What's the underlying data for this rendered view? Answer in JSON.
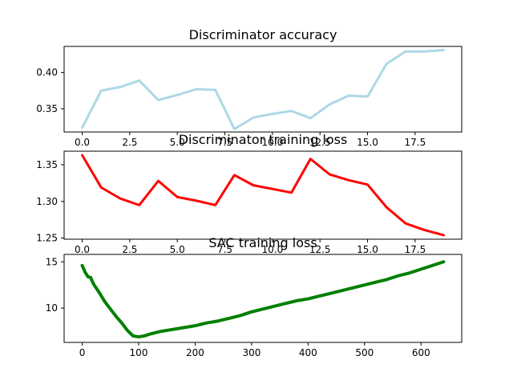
{
  "chart_data": [
    {
      "type": "line",
      "title": "Discriminator accuracy",
      "xlabel": "",
      "ylabel": "",
      "xlim": [
        -0.95,
        19.95
      ],
      "ylim": [
        0.318,
        0.436
      ],
      "x_ticks": [
        0.0,
        2.5,
        5.0,
        7.5,
        10.0,
        12.5,
        15.0,
        17.5
      ],
      "x_tick_labels": [
        "0.0",
        "2.5",
        "5.0",
        "7.5",
        "10.0",
        "12.5",
        "15.0",
        "17.5"
      ],
      "y_ticks": [
        0.35,
        0.4
      ],
      "y_tick_labels": [
        "0.35",
        "0.40"
      ],
      "grid": false,
      "color": "#add8e6",
      "series": [
        {
          "x": [
            0,
            1,
            2,
            3,
            4,
            5,
            6,
            7,
            8,
            9,
            10,
            11,
            12,
            13,
            14,
            15,
            16,
            17,
            18,
            19
          ],
          "values": [
            0.324,
            0.375,
            0.38,
            0.389,
            0.362,
            0.369,
            0.377,
            0.376,
            0.322,
            0.338,
            0.343,
            0.347,
            0.337,
            0.356,
            0.368,
            0.367,
            0.412,
            0.429,
            0.429,
            0.431
          ]
        }
      ]
    },
    {
      "type": "line",
      "title": "Discriminator training loss",
      "xlabel": "",
      "ylabel": "",
      "xlim": [
        -0.95,
        19.95
      ],
      "ylim": [
        1.2485,
        1.3685
      ],
      "x_ticks": [
        0.0,
        2.5,
        5.0,
        7.5,
        10.0,
        12.5,
        15.0,
        17.5
      ],
      "x_tick_labels": [
        "0.0",
        "2.5",
        "5.0",
        "7.5",
        "10.0",
        "12.5",
        "15.0",
        "17.5"
      ],
      "y_ticks": [
        1.25,
        1.3,
        1.35
      ],
      "y_tick_labels": [
        "1.25",
        "1.30",
        "1.35"
      ],
      "grid": false,
      "color": "#ff0000",
      "series": [
        {
          "x": [
            0,
            1,
            2,
            3,
            4,
            5,
            6,
            7,
            8,
            9,
            10,
            11,
            12,
            13,
            14,
            15,
            16,
            17,
            18,
            19
          ],
          "values": [
            1.363,
            1.319,
            1.304,
            1.295,
            1.328,
            1.306,
            1.301,
            1.295,
            1.336,
            1.322,
            1.317,
            1.312,
            1.358,
            1.337,
            1.329,
            1.323,
            1.292,
            1.27,
            1.261,
            1.254
          ]
        }
      ]
    },
    {
      "type": "line",
      "title": "SAC training loss",
      "xlabel": "",
      "ylabel": "",
      "xlim": [
        -32,
        672
      ],
      "ylim": [
        6.3,
        15.8
      ],
      "x_ticks": [
        0,
        100,
        200,
        300,
        400,
        500,
        600
      ],
      "x_tick_labels": [
        "0",
        "100",
        "200",
        "300",
        "400",
        "500",
        "600"
      ],
      "y_ticks": [
        10,
        15
      ],
      "y_tick_labels": [
        "10",
        "15"
      ],
      "grid": false,
      "color": "#008000",
      "series": [
        {
          "x": [
            0,
            5,
            10,
            15,
            20,
            30,
            40,
            50,
            60,
            70,
            80,
            90,
            100,
            110,
            120,
            140,
            160,
            180,
            200,
            220,
            240,
            260,
            280,
            300,
            320,
            340,
            360,
            380,
            400,
            420,
            440,
            460,
            480,
            500,
            520,
            540,
            560,
            580,
            600,
            620,
            640
          ],
          "values": [
            14.6,
            13.9,
            13.4,
            13.3,
            12.6,
            11.7,
            10.7,
            9.9,
            9.1,
            8.4,
            7.6,
            7.0,
            6.9,
            7.0,
            7.2,
            7.5,
            7.7,
            7.9,
            8.1,
            8.4,
            8.6,
            8.9,
            9.2,
            9.6,
            9.9,
            10.2,
            10.5,
            10.8,
            11.0,
            11.3,
            11.6,
            11.9,
            12.2,
            12.5,
            12.8,
            13.1,
            13.5,
            13.8,
            14.2,
            14.6,
            15.0
          ]
        }
      ]
    }
  ]
}
